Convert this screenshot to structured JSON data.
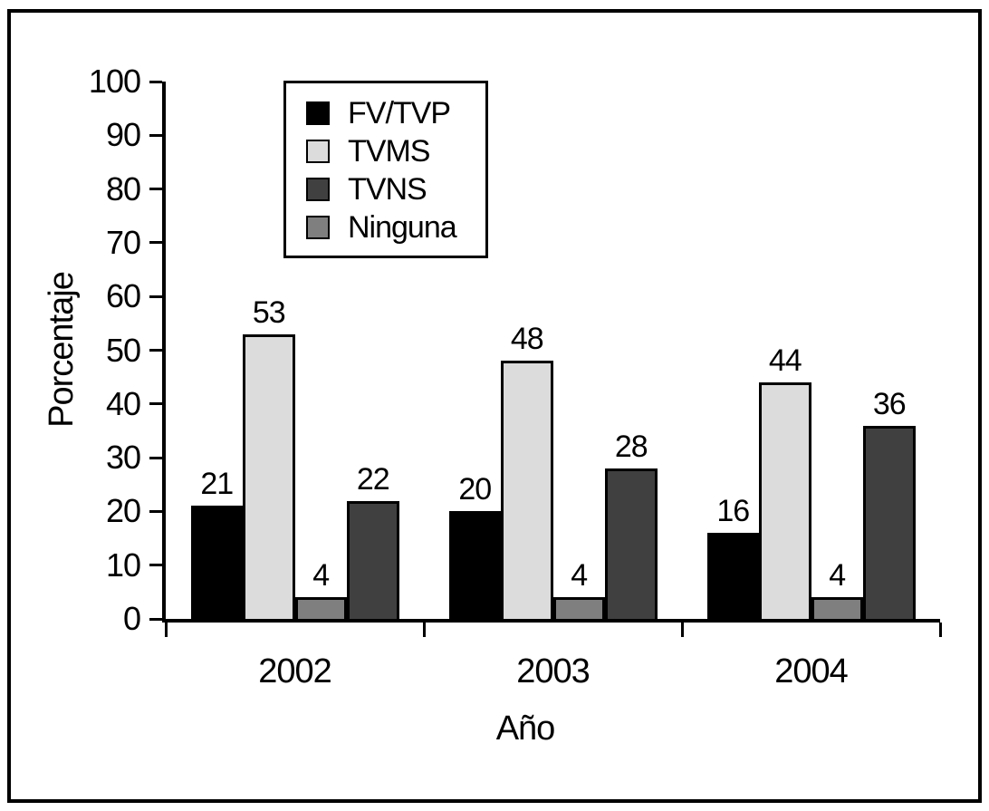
{
  "figure": {
    "background": "#ffffff",
    "border_color": "#000000"
  },
  "chart_data": {
    "type": "bar",
    "title": "",
    "xlabel": "Año",
    "ylabel": "Porcentaje",
    "ylim": [
      0,
      100
    ],
    "yticks": [
      0,
      10,
      20,
      30,
      40,
      50,
      60,
      70,
      80,
      90,
      100
    ],
    "categories": [
      "2002",
      "2003",
      "2004"
    ],
    "series": [
      {
        "name": "FV/TVP",
        "color": "#000000",
        "values": [
          21,
          20,
          16
        ]
      },
      {
        "name": "TVMS",
        "color": "#dcdcdc",
        "values": [
          53,
          48,
          44
        ]
      },
      {
        "name": "TVNS",
        "color": "#404040",
        "values": [
          22,
          28,
          36
        ]
      },
      {
        "name": "Ninguna",
        "color": "#7f7f7f",
        "values": [
          4,
          4,
          4
        ]
      }
    ],
    "bar_draw_order": [
      "FV/TVP",
      "TVMS",
      "Ninguna",
      "TVNS"
    ],
    "value_labels_shown": true,
    "grid": false,
    "legend_position": "top-left-inside",
    "axis_color": "#000000",
    "bar_border_color": "#000000"
  }
}
